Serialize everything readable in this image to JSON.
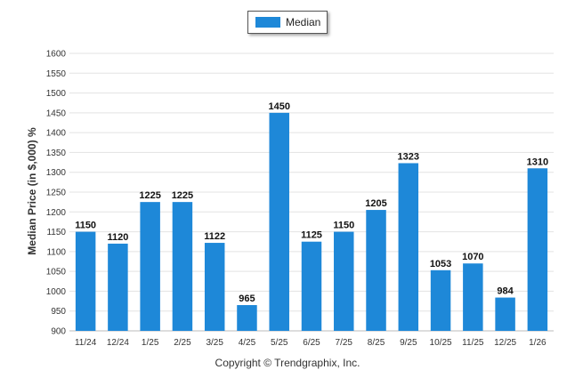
{
  "chart_data": {
    "type": "bar",
    "categories": [
      "11/24",
      "12/24",
      "1/25",
      "2/25",
      "3/25",
      "4/25",
      "5/25",
      "6/25",
      "7/25",
      "8/25",
      "9/25",
      "10/25",
      "11/25",
      "12/25",
      "1/26"
    ],
    "series": [
      {
        "name": "Median",
        "values": [
          1150,
          1120,
          1225,
          1225,
          1122,
          965,
          1450,
          1125,
          1150,
          1205,
          1323,
          1053,
          1070,
          984,
          1310
        ]
      }
    ],
    "ylabel": "Median Price (in $,000) %",
    "ylim": [
      900,
      1600
    ],
    "yticks": [
      900,
      950,
      1000,
      1050,
      1100,
      1150,
      1200,
      1250,
      1300,
      1350,
      1400,
      1450,
      1500,
      1550,
      1600
    ],
    "grid": true,
    "legend_position": "top-center",
    "bar_color": "#1e88d8"
  },
  "footer": {
    "copyright": "Copyright © Trendgraphix, Inc."
  }
}
